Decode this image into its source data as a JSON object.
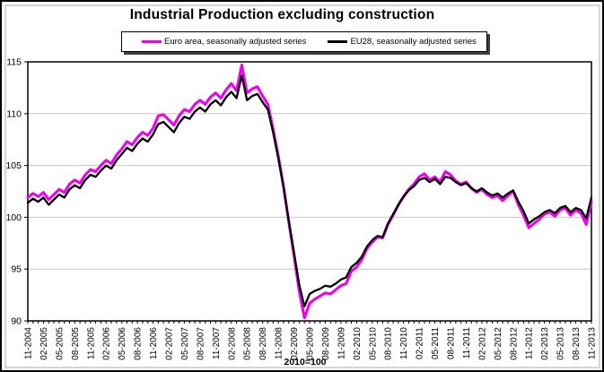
{
  "chart": {
    "title": "Industrial Production excluding construction",
    "footnote": "2010=100",
    "legend": [
      {
        "label": "Euro area, seasonally adjusted series",
        "color": "#EE00EE"
      },
      {
        "label": "EU28, seasonally adjusted series",
        "color": "#000000"
      }
    ]
  },
  "chart_data": {
    "type": "line",
    "title": "Industrial Production excluding construction",
    "note": "2010=100",
    "x_start": "11-2004",
    "x_end": "11-2013",
    "x_frequency": "monthly",
    "x_tick_labels": [
      "11-2004",
      "02-2005",
      "05-2005",
      "08-2005",
      "11-2005",
      "02-2006",
      "05-2006",
      "08-2006",
      "11-2006",
      "02-2007",
      "05-2007",
      "08-2007",
      "11-2007",
      "02-2008",
      "05-2008",
      "08-2008",
      "11-2008",
      "02-2009",
      "05-2009",
      "08-2009",
      "11-2009",
      "02-2010",
      "05-2010",
      "08-2010",
      "11-2010",
      "02-2011",
      "05-2011",
      "08-2011",
      "11-2011",
      "02-2012",
      "05-2012",
      "08-2012",
      "11-2012",
      "02-2013",
      "05-2013",
      "08-2013",
      "11-2013"
    ],
    "ylim": [
      90,
      115
    ],
    "y_ticks": [
      90,
      95,
      100,
      105,
      110,
      115
    ],
    "grid": true,
    "legend_position": "top",
    "series": [
      {
        "name": "Euro area, seasonally adjusted series",
        "color": "#EE00EE",
        "values": [
          101.9,
          102.3,
          102.0,
          102.4,
          101.7,
          102.2,
          102.7,
          102.4,
          103.2,
          103.6,
          103.3,
          104.1,
          104.6,
          104.4,
          105.0,
          105.5,
          105.2,
          106.0,
          106.6,
          107.3,
          107.0,
          107.7,
          108.2,
          107.9,
          108.6,
          109.8,
          109.9,
          109.4,
          108.9,
          109.8,
          110.4,
          110.2,
          110.9,
          111.3,
          110.9,
          111.6,
          112.0,
          111.5,
          112.3,
          112.9,
          112.2,
          114.7,
          112.0,
          112.4,
          112.6,
          111.7,
          110.9,
          108.5,
          105.9,
          103.0,
          99.6,
          96.3,
          92.9,
          90.3,
          91.7,
          92.1,
          92.4,
          92.7,
          92.6,
          93.0,
          93.4,
          93.6,
          94.8,
          95.2,
          95.9,
          97.0,
          97.6,
          98.1,
          98.0,
          99.3,
          100.2,
          101.2,
          102.0,
          102.7,
          103.2,
          103.9,
          104.2,
          103.6,
          103.9,
          103.4,
          104.4,
          104.1,
          103.5,
          103.2,
          103.4,
          102.8,
          102.4,
          102.7,
          102.2,
          101.9,
          102.1,
          101.6,
          102.1,
          102.5,
          101.2,
          100.2,
          99.0,
          99.4,
          99.8,
          100.3,
          100.5,
          100.1,
          100.7,
          100.9,
          100.2,
          100.7,
          100.4,
          99.3,
          101.5
        ]
      },
      {
        "name": "EU28, seasonally adjusted series",
        "color": "#000000",
        "values": [
          101.4,
          101.8,
          101.5,
          101.9,
          101.2,
          101.7,
          102.2,
          101.9,
          102.7,
          103.1,
          102.8,
          103.6,
          104.1,
          103.9,
          104.5,
          105.0,
          104.7,
          105.5,
          106.1,
          106.7,
          106.4,
          107.1,
          107.6,
          107.3,
          108.0,
          109.0,
          109.2,
          108.7,
          108.2,
          109.1,
          109.7,
          109.5,
          110.2,
          110.6,
          110.2,
          110.9,
          111.3,
          110.8,
          111.6,
          112.1,
          111.5,
          113.7,
          111.3,
          111.7,
          111.9,
          111.1,
          110.4,
          108.2,
          105.7,
          102.9,
          99.7,
          96.6,
          93.5,
          91.4,
          92.6,
          92.9,
          93.1,
          93.4,
          93.3,
          93.6,
          94.0,
          94.2,
          95.2,
          95.6,
          96.2,
          97.2,
          97.8,
          98.2,
          98.1,
          99.4,
          100.3,
          101.2,
          102.0,
          102.6,
          103.0,
          103.6,
          103.8,
          103.4,
          103.7,
          103.2,
          103.9,
          103.8,
          103.4,
          103.1,
          103.3,
          102.8,
          102.5,
          102.8,
          102.4,
          102.1,
          102.3,
          101.9,
          102.3,
          102.6,
          101.5,
          100.6,
          99.4,
          99.8,
          100.1,
          100.5,
          100.7,
          100.4,
          100.9,
          101.1,
          100.5,
          100.9,
          100.7,
          99.9,
          101.9
        ]
      }
    ]
  }
}
